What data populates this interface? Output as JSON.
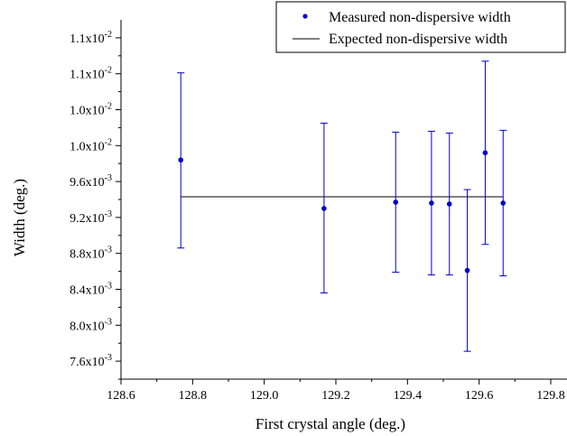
{
  "chart_data": {
    "type": "scatter",
    "xlabel": "First crystal angle (deg.)",
    "ylabel": "Width (deg.)",
    "xlim": [
      128.6,
      129.8
    ],
    "ylim": [
      0.0074,
      0.0114
    ],
    "x_ticks": [
      {
        "value": 128.6,
        "label": "128.6"
      },
      {
        "value": 128.8,
        "label": "128.8"
      },
      {
        "value": 129.0,
        "label": "129.0"
      },
      {
        "value": 129.2,
        "label": "129.2"
      },
      {
        "value": 129.4,
        "label": "129.4"
      },
      {
        "value": 129.6,
        "label": "129.6"
      },
      {
        "value": 129.8,
        "label": "129.8"
      }
    ],
    "y_ticks": [
      {
        "value": 0.0076,
        "mantissa": "7.6x10",
        "exp": "-3"
      },
      {
        "value": 0.008,
        "mantissa": "8.0x10",
        "exp": "-3"
      },
      {
        "value": 0.0084,
        "mantissa": "8.4x10",
        "exp": "-3"
      },
      {
        "value": 0.0088,
        "mantissa": "8.8x10",
        "exp": "-3"
      },
      {
        "value": 0.0092,
        "mantissa": "9.2x10",
        "exp": "-3"
      },
      {
        "value": 0.0096,
        "mantissa": "9.6x10",
        "exp": "-3"
      },
      {
        "value": 0.01,
        "mantissa": "1.0x10",
        "exp": "-2"
      },
      {
        "value": 0.0104,
        "mantissa": "1.0x10",
        "exp": "-2"
      },
      {
        "value": 0.0108,
        "mantissa": "1.1x10",
        "exp": "-2"
      },
      {
        "value": 0.0112,
        "mantissa": "1.1x10",
        "exp": "-2"
      }
    ],
    "series": [
      {
        "name": "Measured non-dispersive width",
        "kind": "points-with-error-bars",
        "color": "#0000cc",
        "points": [
          {
            "x": 128.767,
            "y": 0.00984,
            "err_low": 0.00886,
            "err_high": 0.01081
          },
          {
            "x": 129.167,
            "y": 0.0093,
            "err_low": 0.00836,
            "err_high": 0.01025
          },
          {
            "x": 129.367,
            "y": 0.00937,
            "err_low": 0.00859,
            "err_high": 0.01015
          },
          {
            "x": 129.467,
            "y": 0.00936,
            "err_low": 0.00856,
            "err_high": 0.01016
          },
          {
            "x": 129.517,
            "y": 0.00935,
            "err_low": 0.00856,
            "err_high": 0.01014
          },
          {
            "x": 129.567,
            "y": 0.00861,
            "err_low": 0.00771,
            "err_high": 0.00951
          },
          {
            "x": 129.617,
            "y": 0.00992,
            "err_low": 0.0089,
            "err_high": 0.01094
          },
          {
            "x": 129.667,
            "y": 0.00936,
            "err_low": 0.00855,
            "err_high": 0.01017
          }
        ]
      },
      {
        "name": "Expected non-dispersive width",
        "kind": "line",
        "color": "#000000",
        "x": [
          128.767,
          129.667
        ],
        "y": [
          0.00943,
          0.00943
        ]
      }
    ],
    "legend": {
      "position": "top-right"
    }
  }
}
